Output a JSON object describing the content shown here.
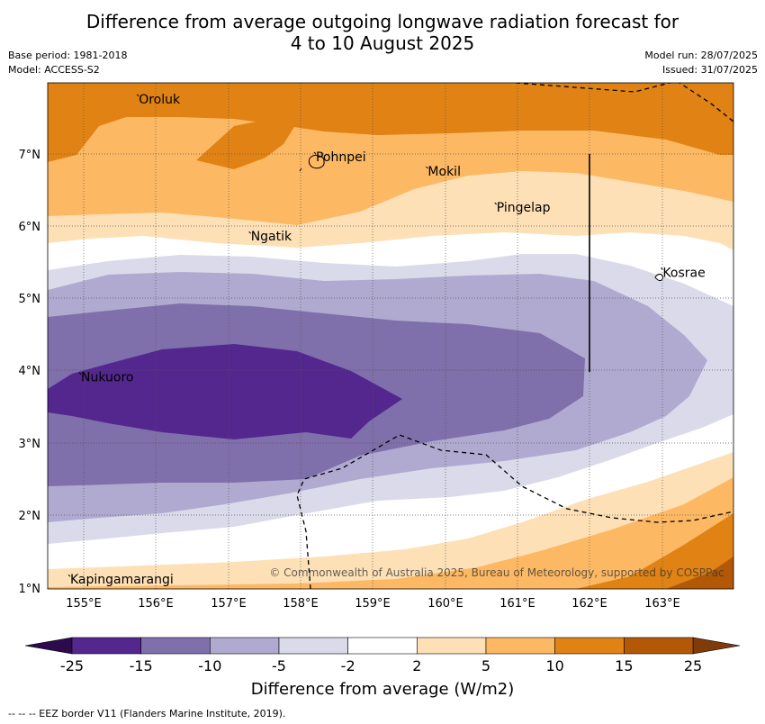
{
  "title_line1": "Difference from average outgoing longwave radiation forecast for",
  "title_line2": "4 to 10 August 2025",
  "base_period": "Base period: 1981-2018",
  "model": "Model: ACCESS-S2",
  "model_run": "Model run: 28/07/2025",
  "issued": "Issued: 31/07/2025",
  "lon_labels": [
    "155°E",
    "156°E",
    "157°E",
    "158°E",
    "159°E",
    "160°E",
    "161°E",
    "162°E",
    "163°E"
  ],
  "lat_labels": [
    "7°N",
    "6°N",
    "5°N",
    "4°N",
    "3°N",
    "2°N",
    "1°N"
  ],
  "places": [
    {
      "name": "Oroluk",
      "lon": 155.75,
      "lat": 7.7
    },
    {
      "name": "Pohnpei",
      "lon": 158.2,
      "lat": 6.9
    },
    {
      "name": "Mokil",
      "lon": 159.75,
      "lat": 6.7
    },
    {
      "name": "Pingelap",
      "lon": 160.7,
      "lat": 6.2
    },
    {
      "name": "Ngatik",
      "lon": 157.3,
      "lat": 5.8
    },
    {
      "name": "Kosrae",
      "lon": 163.0,
      "lat": 5.3
    },
    {
      "name": "Nukuoro",
      "lon": 154.95,
      "lat": 3.85
    },
    {
      "name": "Kapingamarangi",
      "lon": 154.8,
      "lat": 1.05
    }
  ],
  "copyright": "© Commonwealth of Australia 2025, Bureau of Meteorology, supported by COSPPac",
  "colorbar": {
    "ticks": [
      "-25",
      "-15",
      "-10",
      "-5",
      "-2",
      "2",
      "5",
      "10",
      "15",
      "25"
    ],
    "colors": [
      "#2d0a4e",
      "#54278f",
      "#7f6fab",
      "#b0aad0",
      "#dadaeb",
      "#ffffff",
      "#fde0b6",
      "#fdb863",
      "#e08214",
      "#b35806",
      "#7f3b08"
    ],
    "title": "Difference from average (W/m2)"
  },
  "footnote": "--  --  -- EEZ border V11 (Flanders Marine Institute, 2019)."
}
